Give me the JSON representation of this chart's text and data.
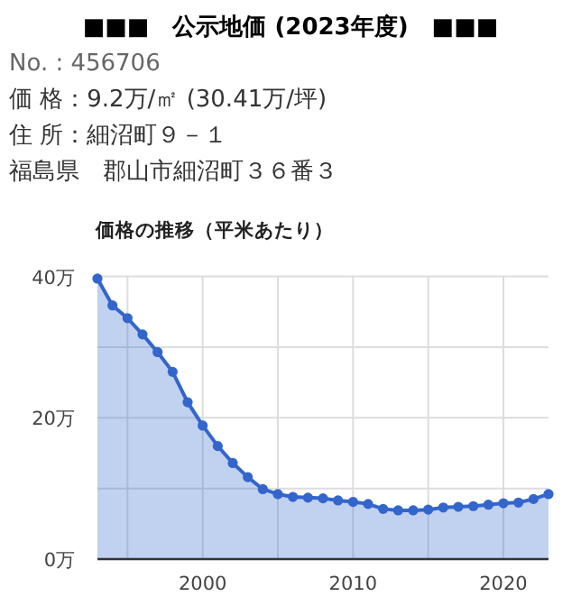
{
  "chart_data": {
    "type": "area",
    "title": "価格の推移（平米あたり）",
    "annotations": [
      "■■■　公示地価 (2023年度)　■■■",
      "No. : 456706",
      "価 格：9.2万/㎡ (30.41万/坪)",
      "住 所：細沼町９－１",
      "福島県　郡山市細沼町３６番３"
    ],
    "x": [
      1993,
      1994,
      1995,
      1996,
      1997,
      1998,
      1999,
      2000,
      2001,
      2002,
      2003,
      2004,
      2005,
      2006,
      2007,
      2008,
      2009,
      2010,
      2011,
      2012,
      2013,
      2014,
      2015,
      2016,
      2017,
      2018,
      2019,
      2020,
      2021,
      2022,
      2023
    ],
    "series": [
      {
        "color": "#3366cc",
        "values": [
          39.7,
          35.9,
          34.1,
          31.8,
          29.3,
          26.5,
          22.2,
          18.9,
          16.0,
          13.6,
          11.6,
          9.9,
          9.2,
          8.8,
          8.7,
          8.6,
          8.3,
          8.1,
          7.8,
          7.1,
          6.9,
          6.9,
          7.0,
          7.3,
          7.4,
          7.5,
          7.7,
          7.9,
          8.0,
          8.5,
          9.2
        ]
      }
    ],
    "xlim": [
      1993,
      2023
    ],
    "xticks": [
      {
        "value": 1995,
        "label": null
      },
      2000,
      {
        "value": 2005,
        "label": null
      },
      2010,
      {
        "value": 2015,
        "label": null
      },
      2020
    ],
    "ylim": [
      0,
      40
    ],
    "yticks": [
      {
        "value": 0,
        "label": "0万"
      },
      {
        "value": 10,
        "label": null
      },
      {
        "value": 20,
        "label": "20万"
      },
      {
        "value": 30,
        "label": null
      },
      {
        "value": 40,
        "label": "40万"
      }
    ],
    "grid": true,
    "marker": "circle"
  }
}
